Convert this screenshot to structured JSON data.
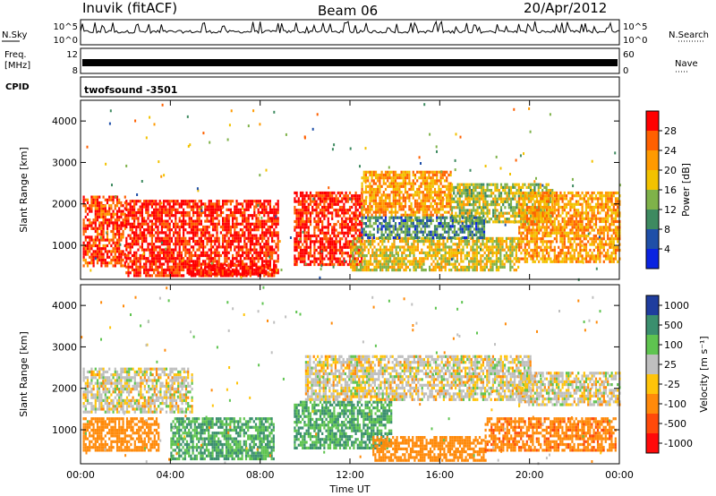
{
  "header": {
    "station": "Inuvik (fitACF)",
    "beam": "Beam 06",
    "date": "20/Apr/2012"
  },
  "strip_panels": {
    "nsky": {
      "label": "N.Sky",
      "ticks": [
        "10^5",
        "10^0"
      ],
      "right_ticks": [
        "10^5",
        "10^0"
      ],
      "right_label": "N.Search"
    },
    "freq": {
      "label": "Freq.",
      "unit": "[MHz]",
      "ticks": [
        "12",
        "8"
      ],
      "right_ticks": [
        "60",
        "0"
      ],
      "right_label": "Nave"
    },
    "cpid": {
      "label": "CPID",
      "text": "twofsound  -3501"
    }
  },
  "axes": {
    "ylabel": "Slant Range [km]",
    "xlabel": "Time UT",
    "x_ticks": [
      "00:00",
      "04:00",
      "08:00",
      "12:00",
      "16:00",
      "20:00",
      "00:00"
    ],
    "y_ticks": [
      "1000",
      "2000",
      "3000",
      "4000"
    ]
  },
  "colorbars": {
    "power": {
      "title": "Power [dB]",
      "labels": [
        "28",
        "24",
        "20",
        "16",
        "12",
        "8",
        "4"
      ],
      "colors": [
        "#ff0000",
        "#ff6000",
        "#ff9a00",
        "#f2c200",
        "#7fb24a",
        "#3e8a60",
        "#1f4fa8",
        "#0a23e0"
      ]
    },
    "velocity": {
      "title": "Velocity  [m s⁻¹]",
      "labels": [
        "1000",
        "500",
        "100",
        "25",
        "-25",
        "-100",
        "-500",
        "-1000"
      ],
      "colors": [
        "#1f3d9e",
        "#3b8f6e",
        "#5fc450",
        "#bfbfbf",
        "#ffc40a",
        "#ff8a0a",
        "#ff4a0a",
        "#ff0a0a"
      ]
    }
  },
  "chart_data": [
    {
      "type": "line",
      "name": "N.Sky / N.Search",
      "x_range_hours": [
        0,
        24
      ],
      "ylim": [
        "10^0",
        "10^5"
      ],
      "description_values": {
        "baseline_level": 0.55,
        "spike_level": 1.0
      }
    },
    {
      "type": "line",
      "name": "Freq / Nave",
      "x_range_hours": [
        0,
        24
      ],
      "ylim_left_mhz": [
        8,
        12
      ],
      "ylim_right_nave": [
        0,
        60
      ],
      "values": {
        "freq_mhz_approx": 10.0
      }
    },
    {
      "type": "heatmap",
      "title": "Power [dB]",
      "x_range_hours": [
        0,
        24
      ],
      "y_range_km": [
        180,
        4500
      ],
      "colorscale_db": [
        4,
        8,
        12,
        16,
        20,
        24,
        28
      ],
      "regions": [
        {
          "t0": 0.1,
          "t1": 2.0,
          "r0": 500,
          "r1": 2200,
          "db": 26
        },
        {
          "t0": 2.0,
          "t1": 8.8,
          "r0": 300,
          "r1": 2100,
          "db": 28
        },
        {
          "t0": 4.8,
          "t1": 8.8,
          "r0": 300,
          "r1": 550,
          "db": 30
        },
        {
          "t0": 9.5,
          "t1": 12.5,
          "r0": 550,
          "r1": 2300,
          "db": 28
        },
        {
          "t0": 12.5,
          "t1": 16.5,
          "r0": 1700,
          "r1": 2800,
          "db": 20
        },
        {
          "t0": 12.0,
          "t1": 19.5,
          "r0": 400,
          "r1": 1200,
          "db": 16
        },
        {
          "t0": 16.5,
          "t1": 21.0,
          "r0": 1600,
          "r1": 2500,
          "db": 14
        },
        {
          "t0": 19.5,
          "t1": 24.0,
          "r0": 600,
          "r1": 2300,
          "db": 20
        },
        {
          "t0": 12.5,
          "t1": 18.0,
          "r0": 1200,
          "r1": 1700,
          "db": 8
        }
      ]
    },
    {
      "type": "heatmap",
      "title": "Velocity [m s-1]",
      "x_range_hours": [
        0,
        24
      ],
      "y_range_km": [
        180,
        4500
      ],
      "colorscale_ms": [
        -1000,
        -500,
        -100,
        -25,
        25,
        100,
        500,
        1000
      ],
      "regions": [
        {
          "t0": 0.1,
          "t1": 5.0,
          "r0": 1400,
          "r1": 2500,
          "v": 0
        },
        {
          "t0": 0.1,
          "t1": 3.5,
          "r0": 500,
          "r1": 1300,
          "v": -200
        },
        {
          "t0": 4.0,
          "t1": 8.6,
          "r0": 300,
          "r1": 1300,
          "v": 300
        },
        {
          "t0": 9.5,
          "t1": 13.8,
          "r0": 550,
          "r1": 1700,
          "v": 300
        },
        {
          "t0": 10.0,
          "t1": 20.0,
          "r0": 1700,
          "r1": 2800,
          "v": 0
        },
        {
          "t0": 13.0,
          "t1": 18.0,
          "r0": 250,
          "r1": 850,
          "v": -200
        },
        {
          "t0": 18.0,
          "t1": 23.8,
          "r0": 500,
          "r1": 1300,
          "v": -250
        },
        {
          "t0": 19.5,
          "t1": 24.0,
          "r0": 1600,
          "r1": 2400,
          "v": 0
        }
      ]
    }
  ]
}
